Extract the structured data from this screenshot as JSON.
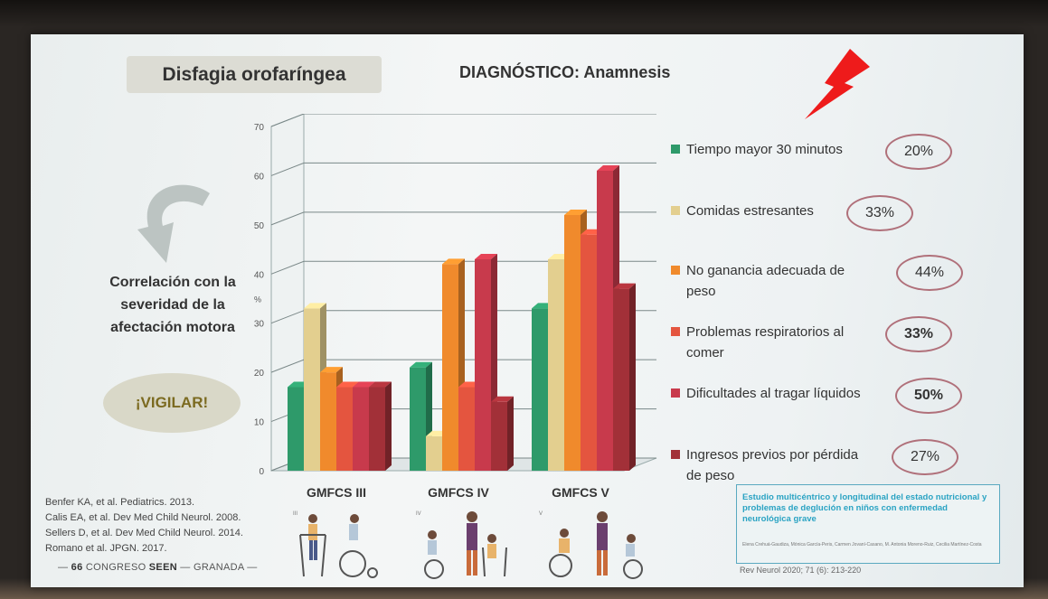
{
  "slide": {
    "title": "Disfagia orofaríngea",
    "subtitle": "DIAGNÓSTICO: Anamnesis",
    "correlation_text": "Correlación con la severidad de la afectación motora",
    "vigilar": "¡VIGILAR!",
    "references": [
      "Benfer KA, et al. Pediatrics. 2013.",
      "Calis EA, et al. Dev Med Child Neurol. 2008.",
      "Sellers D, et al. Dev Med Child Neurol. 2014.",
      "Romano et al. JPGN. 2017."
    ],
    "footer": {
      "number": "66",
      "congreso": "CONGRESO",
      "seen": "SEEN",
      "granada": "GRANADA"
    },
    "study": {
      "title": "Estudio multicéntrico y longitudinal del estado nutricional y problemas de deglución en niños con enfermedad neurológica grave",
      "authors": "Elena Crehuá-Gaudiza, Mónica García-Peris, Carmen Jovaní-Casano, M. Antonia Moreno-Ruiz, Cecilia Martínez-Costa",
      "citation": "Rev Neurol 2020; 71 (6): 213-220"
    },
    "gmfcs_level_marks": [
      "III",
      "IV",
      "V"
    ]
  },
  "chart_data": {
    "type": "bar",
    "title": "",
    "xlabel": "",
    "ylabel": "%",
    "ylim": [
      0,
      70
    ],
    "yticks": [
      0,
      10,
      20,
      30,
      40,
      50,
      60,
      70
    ],
    "categories": [
      "GMFCS III",
      "GMFCS IV",
      "GMFCS V"
    ],
    "series": [
      {
        "name": "Tiempo mayor 30 minutos",
        "values": [
          17,
          21,
          33
        ],
        "color": "#2e9a6a",
        "pct": "20%"
      },
      {
        "name": "Comidas estresantes",
        "values": [
          33,
          7,
          43
        ],
        "color": "#e3cf8f",
        "pct": "33%"
      },
      {
        "name": "No ganancia adecuada de peso",
        "values": [
          20,
          42,
          52
        ],
        "color": "#f08a2c",
        "pct": "44%"
      },
      {
        "name": "Problemas respiratorios al comer",
        "values": [
          17,
          17,
          48
        ],
        "color": "#e4553f",
        "pct": "33%"
      },
      {
        "name": "Dificultades al tragar líquidos",
        "values": [
          17,
          43,
          61
        ],
        "color": "#c83a4c",
        "pct": "50%"
      },
      {
        "name": "Ingresos previos por pérdida de peso",
        "values": [
          17,
          14,
          37
        ],
        "color": "#a23038",
        "pct": "27%"
      }
    ],
    "legend_position": "right"
  },
  "icons": {
    "bolt": "lightning-icon",
    "arrow": "curved-arrow-icon"
  }
}
